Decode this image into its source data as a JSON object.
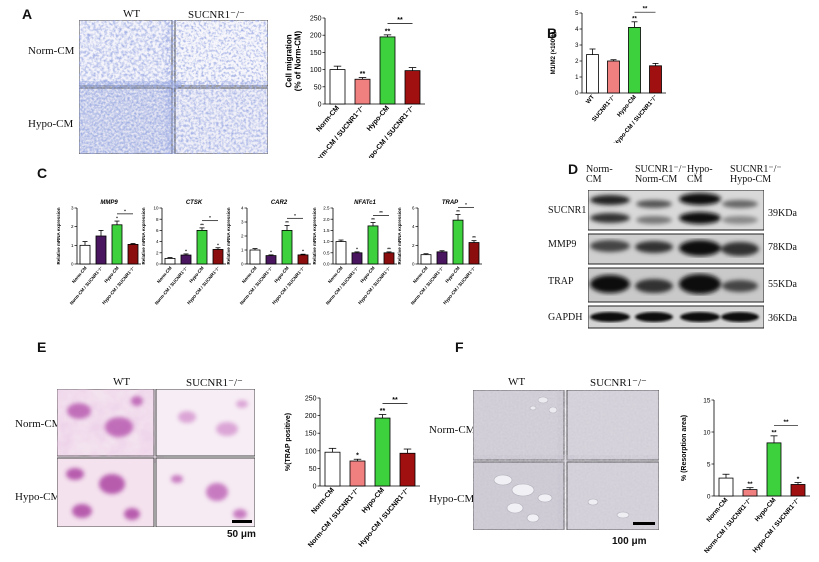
{
  "panels": {
    "A": {
      "letter": "A",
      "col_labels": [
        "WT",
        "SUCNR1⁻/⁻"
      ],
      "row_labels": [
        "Norm-CM",
        "Hypo-CM"
      ]
    },
    "B": {
      "letter": "B"
    },
    "C": {
      "letter": "C"
    },
    "D": {
      "letter": "D",
      "lane_labels": [
        "Norm-\nCM",
        "SUCNR1⁻/⁻\nNorm-CM",
        "Hypo-\nCM",
        "SUCNR1⁻/⁻\nHypo-CM"
      ],
      "proteins": [
        "SUCNR1",
        "MMP9",
        "TRAP",
        "GAPDH"
      ],
      "sizes": [
        "39KDa",
        "78KDa",
        "55KDa",
        "36KDa"
      ]
    },
    "E": {
      "letter": "E",
      "col_labels": [
        "WT",
        "SUCNR1⁻/⁻"
      ],
      "row_labels": [
        "Norm-CM",
        "Hypo-CM"
      ],
      "scale_bar": "50 μm"
    },
    "F": {
      "letter": "F",
      "col_labels": [
        "WT",
        "SUCNR1⁻/⁻"
      ],
      "row_labels": [
        "Norm-CM",
        "Hypo-CM"
      ],
      "scale_bar": "100 μm"
    }
  },
  "colors": {
    "norm_wt": "#ffffff",
    "norm_ko": "#f08080",
    "hypo_wt": "#3ed13e",
    "hypo_ko": "#a01010",
    "mmp9_ko": "#4b1660",
    "hypo_ko_c": "#8b0d0d"
  },
  "chart_data": [
    {
      "id": "A",
      "type": "bar",
      "categories": [
        "Norm-CM",
        "Norm-CM / SUCNR1⁻/⁻",
        "Hypo-CM",
        "Hypo-CM / SUCNR1⁻/⁻"
      ],
      "values": [
        100,
        72,
        195,
        97
      ],
      "errors": [
        10,
        5,
        6,
        9
      ],
      "ylabel": "Cell migration\n(% of Norm-CM)",
      "ylim": [
        0,
        250
      ],
      "yticks": [
        "0",
        "50",
        "100",
        "150",
        "200",
        "250"
      ],
      "stars": [
        "",
        "**",
        "**",
        ""
      ],
      "brackets": [
        {
          "from": 2,
          "to": 3,
          "label": "**"
        }
      ]
    },
    {
      "id": "B",
      "type": "bar",
      "categories": [
        "WT",
        "SUCNR1⁻/⁻",
        "Hypo-CM",
        "Hypo-CM / SUCNR1⁻/⁻"
      ],
      "values": [
        2.4,
        2.0,
        4.1,
        1.7
      ],
      "errors": [
        0.35,
        0.08,
        0.35,
        0.15
      ],
      "ylabel": "M1/M2 (×100%)",
      "ylim": [
        0,
        5
      ],
      "yticks": [
        "0",
        "1",
        "2",
        "3",
        "4",
        "5"
      ],
      "stars": [
        "",
        "",
        "**",
        ""
      ],
      "brackets": [
        {
          "from": 2,
          "to": 3,
          "label": "**"
        }
      ]
    },
    {
      "id": "C1",
      "type": "bar",
      "title": "MMP9",
      "categories": [
        "Norm-CM",
        "Norm-CM / SUCNR1⁻/⁻",
        "Hypo-CM",
        "Hypo-CM / SUCNR1⁻/⁻"
      ],
      "values": [
        1.0,
        1.5,
        2.1,
        1.05
      ],
      "errors": [
        0.2,
        0.3,
        0.2,
        0.05
      ],
      "ylabel": "Relative mRNA expression",
      "ylim": [
        0,
        3
      ],
      "yticks": [
        "0",
        "1",
        "2",
        "3"
      ],
      "stars": [
        "",
        "",
        "*",
        ""
      ],
      "brackets": [
        {
          "from": 2,
          "to": 3,
          "label": "*"
        }
      ]
    },
    {
      "id": "C2",
      "type": "bar",
      "title": "CTSK",
      "categories": [
        "Norm-CM",
        "Norm-CM / SUCNR1⁻/⁻",
        "Hypo-CM",
        "Hypo-CM / SUCNR1⁻/⁻"
      ],
      "values": [
        1.0,
        1.6,
        6.0,
        2.6
      ],
      "errors": [
        0.15,
        0.2,
        0.45,
        0.3
      ],
      "ylabel": "Relative mRNA expression",
      "ylim": [
        0,
        10
      ],
      "yticks": [
        "0",
        "2",
        "4",
        "6",
        "8",
        "10"
      ],
      "stars": [
        "",
        "*",
        "**",
        "*"
      ],
      "brackets": [
        {
          "from": 2,
          "to": 3,
          "label": "*"
        }
      ]
    },
    {
      "id": "C3",
      "type": "bar",
      "title": "CAR2",
      "categories": [
        "Norm-CM",
        "Norm-CM / SUCNR1⁻/⁻",
        "Hypo-CM",
        "Hypo-CM / SUCNR1⁻/⁻"
      ],
      "values": [
        1.0,
        0.6,
        2.4,
        0.65
      ],
      "errors": [
        0.1,
        0.05,
        0.35,
        0.05
      ],
      "ylabel": "Relative mRNA expression",
      "ylim": [
        0,
        4
      ],
      "yticks": [
        "0",
        "1",
        "2",
        "3",
        "4"
      ],
      "stars": [
        "",
        "*",
        "**",
        "*"
      ],
      "brackets": [
        {
          "from": 2,
          "to": 3,
          "label": "*"
        }
      ]
    },
    {
      "id": "C4",
      "type": "bar",
      "title": "NFATc1",
      "categories": [
        "Norm-CM",
        "Norm-CM / SUCNR1⁻/⁻",
        "Hypo-CM",
        "Hypo-CM / SUCNR1⁻/⁻"
      ],
      "values": [
        1.0,
        0.5,
        1.7,
        0.5
      ],
      "errors": [
        0.07,
        0.04,
        0.15,
        0.04
      ],
      "ylabel": "Relative mRNA expression",
      "ylim": [
        0,
        2.5
      ],
      "yticks": [
        "0.0",
        "0.5",
        "1.0",
        "1.5",
        "2.0",
        "2.5"
      ],
      "stars": [
        "",
        "*",
        "**",
        "**"
      ],
      "brackets": [
        {
          "from": 2,
          "to": 3,
          "label": "**"
        }
      ]
    },
    {
      "id": "C5",
      "type": "bar",
      "title": "TRAP",
      "categories": [
        "Norm-CM",
        "Norm-CM / SUCNR1⁻/⁻",
        "Hypo-CM",
        "Hypo-CM / SUCNR1⁻/⁻"
      ],
      "values": [
        1.0,
        1.3,
        4.7,
        2.3
      ],
      "errors": [
        0.1,
        0.12,
        0.6,
        0.2
      ],
      "ylabel": "Relative mRNA expression",
      "ylim": [
        0,
        6
      ],
      "yticks": [
        "0",
        "2",
        "4",
        "6"
      ],
      "stars": [
        "",
        "",
        "**",
        "**"
      ],
      "brackets": [
        {
          "from": 2,
          "to": 3,
          "label": "*"
        }
      ]
    },
    {
      "id": "E",
      "type": "bar",
      "categories": [
        "Norm-CM",
        "Norm-CM / SUCNR1⁻/⁻",
        "Hypo-CM",
        "Hypo-CM / SUCNR1⁻/⁻"
      ],
      "values": [
        96,
        71,
        193,
        93
      ],
      "errors": [
        11,
        5,
        10,
        12
      ],
      "ylabel": "%(TRAP positive)",
      "ylim": [
        0,
        250
      ],
      "yticks": [
        "0",
        "50",
        "100",
        "150",
        "200",
        "250"
      ],
      "stars": [
        "",
        "*",
        "**",
        ""
      ],
      "brackets": [
        {
          "from": 2,
          "to": 3,
          "label": "**"
        }
      ]
    },
    {
      "id": "F",
      "type": "bar",
      "categories": [
        "Norm-CM",
        "Norm-CM / SUCNR1⁻/⁻",
        "Hypo-CM",
        "Hypo-CM / SUCNR1⁻/⁻"
      ],
      "values": [
        2.8,
        1.0,
        8.3,
        1.8
      ],
      "errors": [
        0.6,
        0.3,
        1.1,
        0.3
      ],
      "ylabel": "% (Resorption area)",
      "ylim": [
        0,
        15
      ],
      "yticks": [
        "0",
        "5",
        "10",
        "15"
      ],
      "stars": [
        "",
        "**",
        "**",
        "*"
      ],
      "brackets": [
        {
          "from": 2,
          "to": 3,
          "label": "**"
        }
      ]
    }
  ]
}
